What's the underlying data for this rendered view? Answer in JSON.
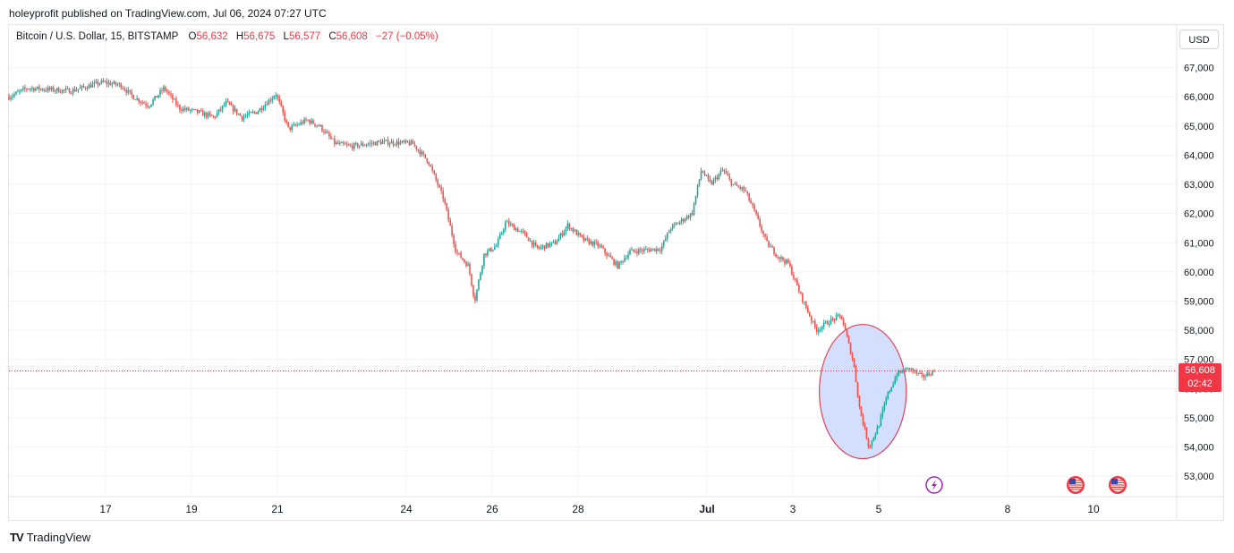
{
  "header": {
    "publisher": "holeyprofit published on TradingView.com, Jul 06, 2024 07:27 UTC"
  },
  "legend": {
    "symbol": "Bitcoin / U.S. Dollar, 15, BITSTAMP",
    "o_label": "O",
    "o": "56,632",
    "h_label": "H",
    "h": "56,675",
    "l_label": "L",
    "l": "56,577",
    "c_label": "C",
    "c": "56,608",
    "change": "−27 (−0.05%)"
  },
  "currency": "USD",
  "last_price": {
    "price": "56,608",
    "countdown": "02:42"
  },
  "brand": {
    "logo": "TV",
    "name": "TradingView"
  },
  "colors": {
    "up": "#26a69a",
    "down": "#ef5350",
    "grid": "#f0f3fa",
    "annotation_fill": "#cdd8ff",
    "annotation_stroke": "#e0455a"
  },
  "chart_data": {
    "type": "candlestick",
    "x_ticks": [
      "17",
      "19",
      "21",
      "24",
      "26",
      "28",
      "Jul",
      "3",
      "5",
      "8",
      "10"
    ],
    "y_ticks": [
      "53,000",
      "54,000",
      "55,000",
      "56,000",
      "57,000",
      "58,000",
      "59,000",
      "60,000",
      "61,000",
      "62,000",
      "63,000",
      "64,000",
      "65,000",
      "66,000",
      "67,000"
    ],
    "ylim": [
      52300,
      67600
    ],
    "path_points": [
      [
        0,
        66000
      ],
      [
        0.6,
        66300
      ],
      [
        2,
        66200
      ],
      [
        3,
        66500
      ],
      [
        3.6,
        66400
      ],
      [
        4,
        66000
      ],
      [
        4.5,
        65700
      ],
      [
        5,
        66300
      ],
      [
        5.5,
        65600
      ],
      [
        6,
        65500
      ],
      [
        6.6,
        65300
      ],
      [
        7,
        65800
      ],
      [
        7.5,
        65300
      ],
      [
        8,
        65500
      ],
      [
        8.6,
        66100
      ],
      [
        9,
        64900
      ],
      [
        9.6,
        65200
      ],
      [
        10,
        65000
      ],
      [
        10.5,
        64400
      ],
      [
        11,
        64300
      ],
      [
        12,
        64450
      ],
      [
        13,
        64400
      ],
      [
        13.5,
        63800
      ],
      [
        14,
        62500
      ],
      [
        14.4,
        60700
      ],
      [
        14.8,
        60200
      ],
      [
        15,
        59000
      ],
      [
        15.3,
        60600
      ],
      [
        15.7,
        60900
      ],
      [
        16,
        61700
      ],
      [
        16.6,
        61300
      ],
      [
        17,
        60800
      ],
      [
        17.6,
        61000
      ],
      [
        18,
        61600
      ],
      [
        18.5,
        61100
      ],
      [
        19,
        60900
      ],
      [
        19.6,
        60200
      ],
      [
        20,
        60700
      ],
      [
        21,
        60800
      ],
      [
        21.3,
        61500
      ],
      [
        22,
        62000
      ],
      [
        22.3,
        63500
      ],
      [
        22.6,
        63000
      ],
      [
        23,
        63500
      ],
      [
        23.3,
        63000
      ],
      [
        23.7,
        62800
      ],
      [
        24,
        62100
      ],
      [
        24.4,
        61000
      ],
      [
        24.8,
        60500
      ],
      [
        25.1,
        60300
      ],
      [
        25.5,
        59200
      ],
      [
        26,
        58000
      ],
      [
        26.4,
        58300
      ],
      [
        26.8,
        58500
      ],
      [
        27,
        57700
      ],
      [
        27.2,
        56900
      ],
      [
        27.4,
        55300
      ],
      [
        27.7,
        54000
      ],
      [
        28,
        54700
      ],
      [
        28.3,
        55800
      ],
      [
        28.6,
        56500
      ],
      [
        29,
        56700
      ],
      [
        29.4,
        56400
      ],
      [
        29.8,
        56600
      ]
    ],
    "annotations": [
      {
        "shape": "ellipse",
        "x_center": 27.5,
        "y_center": 55900,
        "x_radius": 1.4,
        "y_radius": 2300
      },
      {
        "shape": "event",
        "icon": "lightning-icon",
        "x": 29.8
      },
      {
        "shape": "event",
        "icon": "us-flag-icon",
        "x": 34.4
      },
      {
        "shape": "event",
        "icon": "us-flag-icon",
        "x": 35.8
      }
    ]
  }
}
